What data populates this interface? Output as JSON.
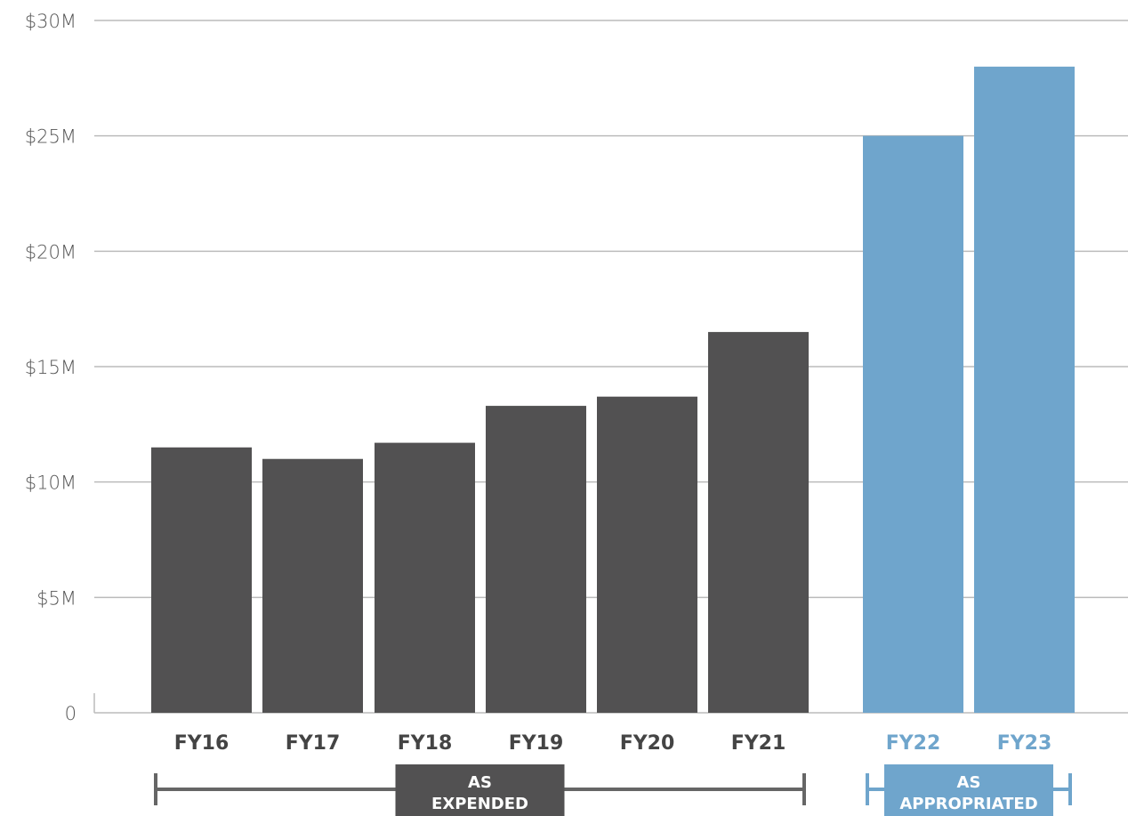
{
  "chart_data": {
    "type": "bar",
    "categories": [
      "FY16",
      "FY17",
      "FY18",
      "FY19",
      "FY20",
      "FY21",
      "FY22",
      "FY23"
    ],
    "values": [
      11.5,
      11.0,
      11.7,
      13.3,
      13.7,
      16.5,
      25.0,
      28.0
    ],
    "unit": "$M",
    "ylim": [
      0,
      30
    ],
    "yticks": [
      0,
      5,
      10,
      15,
      20,
      25,
      30
    ],
    "ytick_labels": [
      "0",
      "$5M",
      "$10M",
      "$15M",
      "$20M",
      "$25M",
      "$30M"
    ],
    "grid": true,
    "groups": [
      {
        "label_line1": "AS",
        "label_line2": "EXPENDED",
        "categories": [
          "FY16",
          "FY17",
          "FY18",
          "FY19",
          "FY20",
          "FY21"
        ],
        "color": "#525152"
      },
      {
        "label_line1": "AS",
        "label_line2": "APPROPRIATED",
        "categories": [
          "FY22",
          "FY23"
        ],
        "color": "#6fa5cc"
      }
    ],
    "colors": {
      "expended": "#525152",
      "appropriated": "#6fa5cc",
      "grid": "#bbbbbb",
      "axis_text": "#555555",
      "label_dark": "#444444"
    }
  }
}
